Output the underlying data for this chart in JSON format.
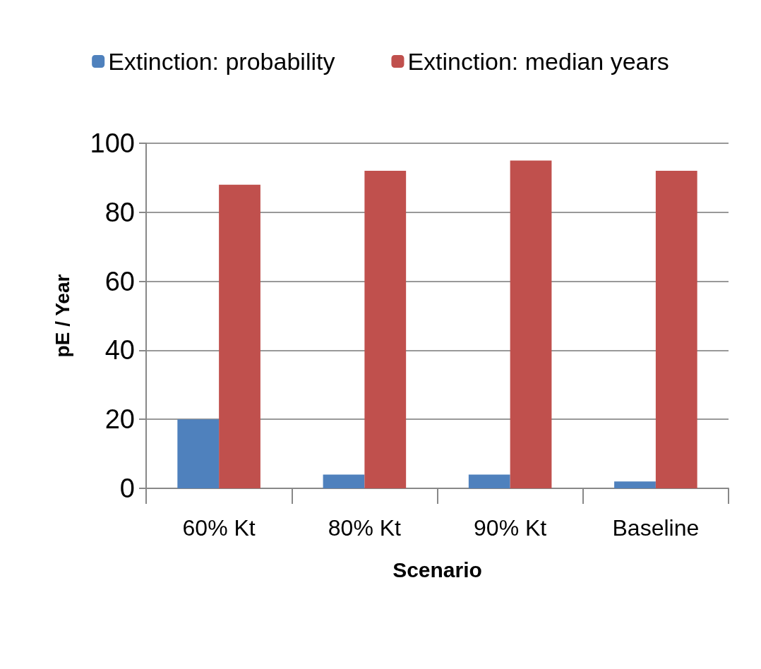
{
  "chart_data": {
    "type": "bar",
    "xlabel": "Scenario",
    "ylabel": "pE / Year",
    "categories": [
      "60% Kt",
      "80% Kt",
      "90% Kt",
      "Baseline"
    ],
    "series": [
      {
        "name": "Extinction: probability",
        "color": "#4f81bd",
        "values": [
          20,
          4,
          4,
          2
        ]
      },
      {
        "name": "Extinction: median years",
        "color": "#c0504d",
        "values": [
          88,
          92,
          95,
          92
        ]
      }
    ],
    "ylim": [
      0,
      100
    ],
    "yticks": [
      0,
      20,
      40,
      60,
      80,
      100
    ],
    "grid": "y",
    "legend": "top"
  }
}
